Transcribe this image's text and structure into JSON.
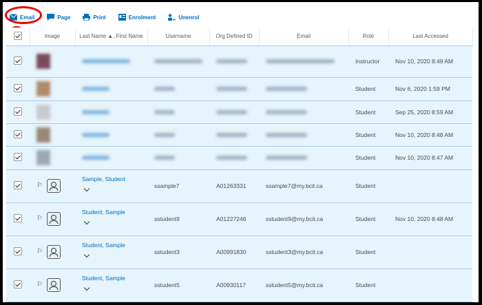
{
  "toolbar": {
    "email": "Email",
    "page": "Page",
    "print": "Print",
    "enrolment": "Enrolment",
    "unenrol": "Unenrol"
  },
  "columns": {
    "image": "Image",
    "last_name": "Last Name",
    "first_name": ", First Name",
    "username": "Username",
    "org_id": "Org Defined ID",
    "email": "Email",
    "role": "Role",
    "last_accessed": "Last Accessed"
  },
  "colors": {
    "link": "#006fbf",
    "row_bg": "#e6f4fb",
    "highlight": "#e00000"
  },
  "blurred_rows": [
    {
      "role": "Instructor",
      "last_accessed": "Nov 10, 2020 8:49 AM",
      "photo": "#7a4a5a"
    },
    {
      "role": "Student",
      "last_accessed": "Nov 6, 2020 1:59 PM",
      "photo": "#b08a6a"
    },
    {
      "role": "Student",
      "last_accessed": "Sep 25, 2020 8:59 AM",
      "photo": "#c8ccd0"
    },
    {
      "role": "Student",
      "last_accessed": "Nov 10, 2020 8:48 AM",
      "photo": "#9a8878"
    },
    {
      "role": "Student",
      "last_accessed": "Nov 10, 2020 8:47 AM",
      "photo": "#a0a8b8"
    }
  ],
  "rows": [
    {
      "name": "Sample, Student",
      "username": "ssample7",
      "org_id": "A01263331",
      "email": "ssample7@my.bcit.ca",
      "role": "Student",
      "last_accessed": ""
    },
    {
      "name": "Student, Sample",
      "username": "sstudent9",
      "org_id": "A01227246",
      "email": "sstudent9@my.bcit.ca",
      "role": "Student",
      "last_accessed": "Nov 10, 2020 8:48 AM"
    },
    {
      "name": "Student, Sample",
      "username": "sstudent3",
      "org_id": "A00991830",
      "email": "sstudent3@my.bcit.ca",
      "role": "Student",
      "last_accessed": ""
    },
    {
      "name": "Student, Sample",
      "username": "sstudent5",
      "org_id": "A00930117",
      "email": "sstudent5@my.bcit.ca",
      "role": "Student",
      "last_accessed": ""
    }
  ]
}
